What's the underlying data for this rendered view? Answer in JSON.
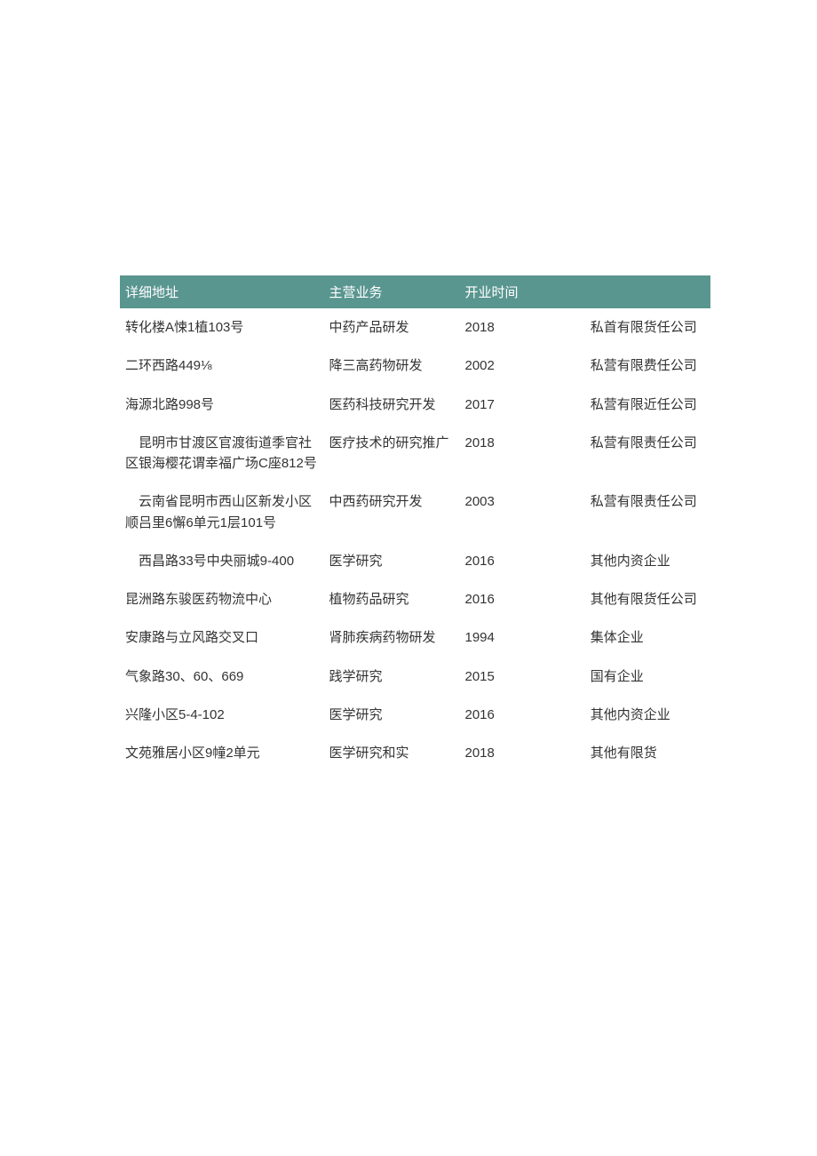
{
  "table": {
    "header_bg": "#5a9690",
    "header_fg": "#ffffff",
    "body_fg": "#333333",
    "font_family": "Microsoft YaHei",
    "columns": [
      {
        "key": "address",
        "label": "详细地址"
      },
      {
        "key": "business",
        "label": "主营业务"
      },
      {
        "key": "year",
        "label": "开业时间"
      },
      {
        "key": "type",
        "label": ""
      }
    ],
    "rows": [
      {
        "address": "转化楼A悚1植103号",
        "business": "中药产品研发",
        "year": "2018",
        "type": "私首有限货任公司"
      },
      {
        "address": "二环西路449⅛",
        "business": "降三高药物研发",
        "year": "2002",
        "type": "私营有限费任公司"
      },
      {
        "address": "海源北路998号",
        "business": "医药科技研究开发",
        "year": "2017",
        "type": "私营有限近任公司"
      },
      {
        "address": "　昆明市甘渡区官渡街道季官社区银海樱花谓幸福广场C座812号",
        "business": "医疗技术的研究推广",
        "year": "2018",
        "type": "私营有限责任公司"
      },
      {
        "address": "　云南省昆明市西山区新发小区顺吕里6懈6单元1层101号",
        "business": "中西药研究开发",
        "year": "2003",
        "type": "私营有限责任公司"
      },
      {
        "address": "　西昌路33号中央丽城9-400",
        "business": "医学研究",
        "year": "2016",
        "type": "其他内资企业"
      },
      {
        "address": "昆洲路东骏医药物流中心",
        "business": "植物药品研究",
        "year": "2016",
        "type": "其他有限货任公司"
      },
      {
        "address": "安康路与立风路交叉口",
        "business": "肾肺疾病药物研发",
        "year": "1994",
        "type": "集体企业"
      },
      {
        "address": "气象路30、60、669",
        "business": "践学研究",
        "year": "2015",
        "type": "国有企业"
      },
      {
        "address": "兴隆小区5-4-102",
        "business": "医学研究",
        "year": "2016",
        "type": "其他内资企业"
      },
      {
        "address": "文苑雅居小区9幢2单元",
        "business": "医学研究和实",
        "year": "2018",
        "type": "其他有限货"
      }
    ]
  }
}
